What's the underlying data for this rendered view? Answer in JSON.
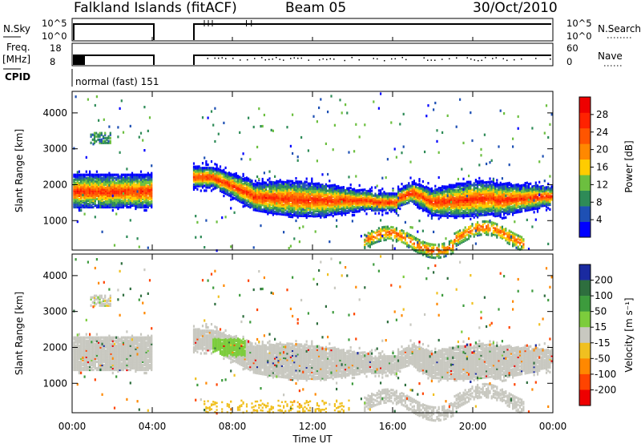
{
  "header": {
    "station": "Falkland Islands (fitACF)",
    "beam": "Beam 05",
    "date": "30/Oct/2010"
  },
  "top_panels": {
    "nsky_label": "N.Sky",
    "nsky_ticks": [
      "10^5",
      "10^0"
    ],
    "nsearch_label": "N.Search",
    "nsearch_ticks": [
      "10^5",
      "10^0"
    ],
    "freq_label_1": "Freq.",
    "freq_label_2": "[MHz]",
    "freq_ticks": [
      "18",
      "8"
    ],
    "nave_label": "Nave",
    "nave_ticks": [
      "60",
      "0"
    ],
    "cpid_label": "CPID",
    "cpid_text": "normal (fast) 151"
  },
  "chart_data": [
    {
      "type": "heatmap",
      "name": "power",
      "ylabel": "Slant Range [km]",
      "yticks": [
        1000,
        2000,
        3000,
        4000
      ],
      "ylim": [
        180,
        4600
      ],
      "xlim": [
        0,
        24
      ],
      "x_ticks": [
        "00:00",
        "04:00",
        "08:00",
        "12:00",
        "16:00",
        "20:00",
        "00:00"
      ],
      "x_tick_hours": [
        0,
        4,
        8,
        12,
        16,
        20,
        24
      ],
      "data_gap_hours": [
        4.0,
        6.0
      ],
      "colorbar": {
        "label": "Power [dB]",
        "ticks": [
          "4",
          "8",
          "12",
          "16",
          "20",
          "24",
          "28"
        ],
        "tick_values": [
          4,
          8,
          12,
          16,
          20,
          24,
          28
        ],
        "range": [
          0,
          32
        ],
        "colors": [
          "#0000ff",
          "#1e50b4",
          "#2e8b57",
          "#6cbf3f",
          "#ffcc00",
          "#ff8800",
          "#ff5500",
          "#ff2200",
          "#ee0000"
        ]
      }
    },
    {
      "type": "heatmap",
      "name": "velocity",
      "ylabel": "Slant Range [km]",
      "yticks": [
        1000,
        2000,
        3000,
        4000
      ],
      "ylim": [
        180,
        4600
      ],
      "xlim": [
        0,
        24
      ],
      "x_ticks": [
        "00:00",
        "04:00",
        "08:00",
        "12:00",
        "16:00",
        "20:00",
        "00:00"
      ],
      "x_tick_hours": [
        0,
        4,
        8,
        12,
        16,
        20,
        24
      ],
      "xlabel": "Time UT",
      "colorbar": {
        "label": "Velocity [m s⁻¹]",
        "ticks": [
          "200",
          "100",
          "50",
          "15",
          "-15",
          "-50",
          "-100",
          "-200"
        ],
        "colors": [
          "#1a2aa0",
          "#2e6e3e",
          "#3d9b3d",
          "#7ccc3c",
          "#c8c8c0",
          "#f0c020",
          "#ff8800",
          "#ff4400",
          "#ee0000"
        ]
      }
    }
  ]
}
